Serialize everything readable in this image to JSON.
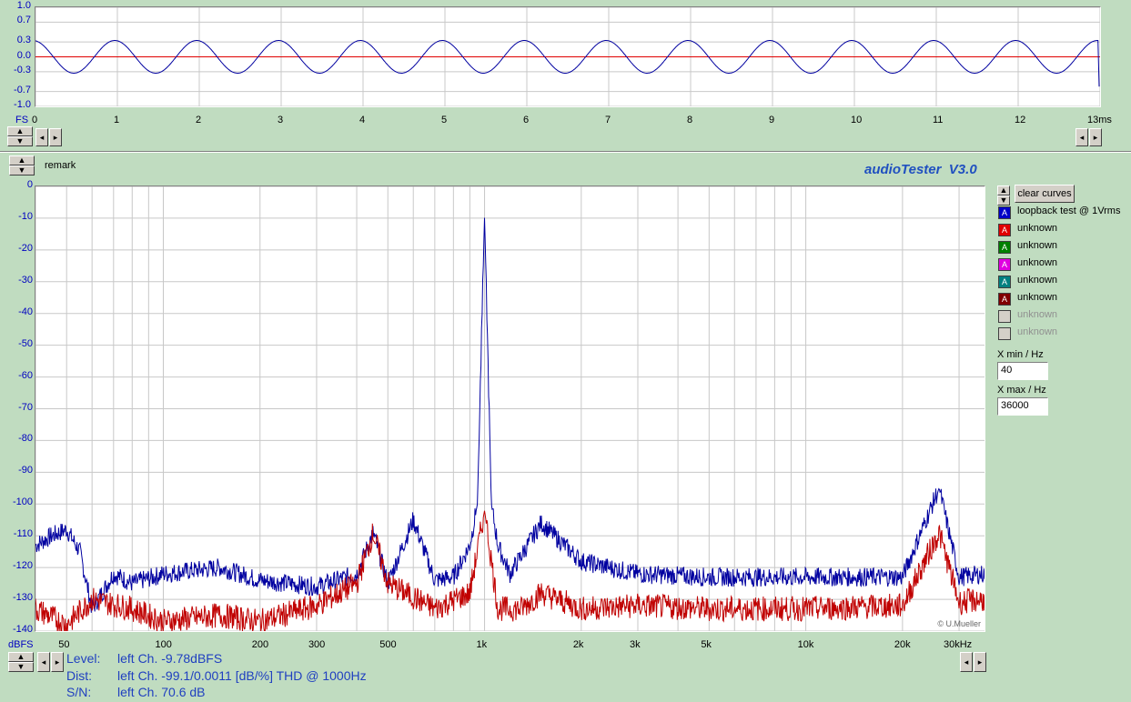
{
  "app": {
    "title": "audioTester  V3.0",
    "remark": "remark",
    "copyright": "© U.Mueller"
  },
  "colors": {
    "accent_blue": "#0000a0",
    "accent_red": "#c00000",
    "background": "#c0dcc0",
    "zero_line": "#e00000"
  },
  "scope": {
    "y_unit": "FS",
    "x_unit": "13ms",
    "y_ticks": [
      "1.0",
      "0.7",
      "0.3",
      "0.0",
      "-0.3",
      "-0.7",
      "-1.0"
    ],
    "x_ticks": [
      "0",
      "1",
      "2",
      "3",
      "4",
      "5",
      "6",
      "7",
      "8",
      "9",
      "10",
      "11",
      "12"
    ],
    "signal_amplitude": 0.33,
    "signal_frequency_hz": 1000,
    "duration_ms": 13
  },
  "spectrum": {
    "y_unit": "dBFS",
    "x_unit": "30kHz",
    "y_ticks": [
      "0",
      "-10",
      "-20",
      "-30",
      "-40",
      "-50",
      "-60",
      "-70",
      "-80",
      "-90",
      "-100",
      "-110",
      "-120",
      "-130",
      "-140"
    ],
    "x_ticks": [
      "50",
      "100",
      "200",
      "300",
      "500",
      "1k",
      "2k",
      "3k",
      "5k",
      "10k",
      "20k"
    ]
  },
  "chart_data": {
    "type": "line",
    "title": "",
    "xlabel": "",
    "ylabel": "dBFS",
    "xscale": "log",
    "xlim": [
      40,
      36000
    ],
    "ylim": [
      -140,
      0
    ],
    "grid": true,
    "series": [
      {
        "name": "loopback test @ 1Vrms",
        "color": "#0000a0",
        "x": [
          40,
          45,
          50,
          55,
          60,
          70,
          80,
          100,
          150,
          200,
          300,
          400,
          450,
          500,
          600,
          700,
          800,
          900,
          950,
          1000,
          1050,
          1100,
          1200,
          1500,
          2000,
          3000,
          5000,
          10000,
          20000,
          26000,
          30000,
          36000
        ],
        "y": [
          -113,
          -110,
          -108,
          -115,
          -133,
          -122,
          -125,
          -122,
          -120,
          -124,
          -126,
          -122,
          -109,
          -125,
          -105,
          -124,
          -123,
          -113,
          -100,
          -9,
          -100,
          -113,
          -122,
          -106,
          -118,
          -122,
          -123,
          -123,
          -123,
          -95,
          -123,
          -122
        ]
      },
      {
        "name": "unknown",
        "color": "#c00000",
        "x": [
          40,
          50,
          60,
          80,
          100,
          150,
          200,
          300,
          400,
          450,
          500,
          700,
          900,
          1000,
          1100,
          1300,
          1500,
          2000,
          3000,
          5000,
          10000,
          20000,
          26000,
          30000,
          36000
        ],
        "y": [
          -133,
          -138,
          -130,
          -133,
          -137,
          -135,
          -137,
          -132,
          -125,
          -109,
          -125,
          -133,
          -128,
          -102,
          -133,
          -133,
          -128,
          -133,
          -132,
          -133,
          -133,
          -132,
          -109,
          -131,
          -130
        ]
      }
    ]
  },
  "legend": {
    "clear_label": "clear curves",
    "items": [
      {
        "label": "loopback test @ 1Vrms",
        "color": "#0000c8",
        "glyph": "A",
        "enabled": true
      },
      {
        "label": "unknown",
        "color": "#e00000",
        "glyph": "A",
        "enabled": true
      },
      {
        "label": "unknown",
        "color": "#008000",
        "glyph": "A",
        "enabled": true
      },
      {
        "label": "unknown",
        "color": "#e000e0",
        "glyph": "A",
        "enabled": true
      },
      {
        "label": "unknown",
        "color": "#008080",
        "glyph": "A",
        "enabled": true
      },
      {
        "label": "unknown",
        "color": "#800000",
        "glyph": "A",
        "enabled": true
      },
      {
        "label": "unknown",
        "color": "#d4d0c8",
        "glyph": "",
        "enabled": false
      },
      {
        "label": "unknown",
        "color": "#d4d0c8",
        "glyph": "",
        "enabled": false
      }
    ]
  },
  "xmin": {
    "label": "X min / Hz",
    "value": "40"
  },
  "xmax": {
    "label": "X max / Hz",
    "value": "36000"
  },
  "info": {
    "level_label": "Level:",
    "level_value": "left Ch. -9.78dBFS",
    "dist_label": "Dist:",
    "dist_value": "left Ch. -99.1/0.0011 [dB/%] THD @ 1000Hz",
    "sn_label": "S/N:",
    "sn_value": "left Ch. 70.6 dB"
  }
}
